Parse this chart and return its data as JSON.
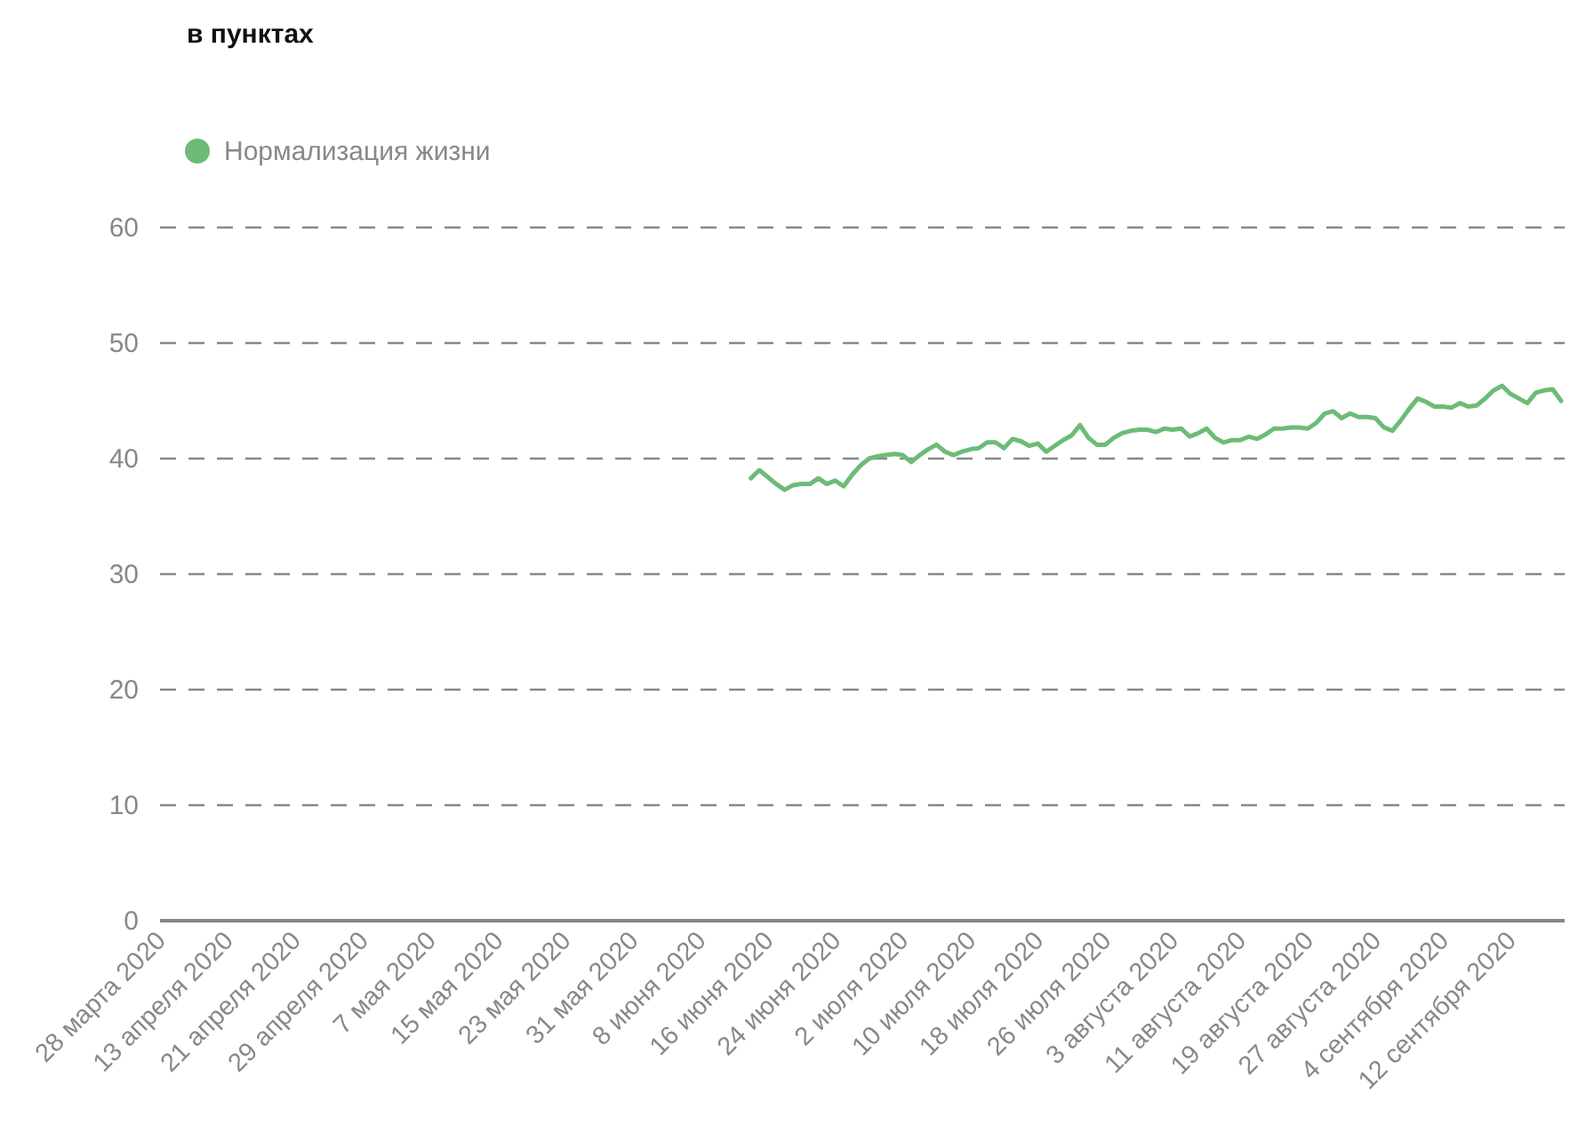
{
  "chart_data": {
    "type": "line",
    "title": "в пунктах",
    "legend": "top left",
    "grid": "y",
    "line_style": "solid",
    "marker": "none",
    "categories": [
      "28 марта 2020",
      null,
      null,
      null,
      null,
      null,
      null,
      null,
      "13 апреля 2020",
      null,
      null,
      null,
      null,
      null,
      null,
      null,
      "21 апреля 2020",
      null,
      null,
      null,
      null,
      null,
      null,
      null,
      "29 апреля 2020",
      null,
      null,
      null,
      null,
      null,
      null,
      null,
      "7 мая 2020",
      null,
      null,
      null,
      null,
      null,
      null,
      null,
      "15 мая 2020",
      null,
      null,
      null,
      null,
      null,
      null,
      null,
      "23 мая 2020",
      null,
      null,
      null,
      null,
      null,
      null,
      null,
      "31 мая 2020",
      null,
      null,
      null,
      null,
      null,
      null,
      null,
      "8 июня 2020",
      null,
      null,
      null,
      null,
      null,
      null,
      null,
      "16 июня 2020",
      null,
      null,
      null,
      null,
      null,
      null,
      null,
      "24 июня 2020",
      null,
      null,
      null,
      null,
      null,
      null,
      null,
      "2 июля 2020",
      null,
      null,
      null,
      null,
      null,
      null,
      null,
      "10 июля 2020",
      null,
      null,
      null,
      null,
      null,
      null,
      null,
      "18 июля 2020",
      null,
      null,
      null,
      null,
      null,
      null,
      null,
      "26 июля 2020",
      null,
      null,
      null,
      null,
      null,
      null,
      null,
      "3 августа 2020",
      null,
      null,
      null,
      null,
      null,
      null,
      null,
      "11 августа 2020",
      null,
      null,
      null,
      null,
      null,
      null,
      null,
      "19 августа 2020",
      null,
      null,
      null,
      null,
      null,
      null,
      null,
      "27 августа 2020",
      null,
      null,
      null,
      null,
      null,
      null,
      null,
      "4 сентября 2020",
      null,
      null,
      null,
      null,
      null,
      null,
      null,
      "12 сентября 2020",
      null,
      null,
      null,
      null,
      null,
      null
    ],
    "series": [
      {
        "name": "Нормализация жизни",
        "color": "#6dbb77",
        "values": [
          null,
          null,
          null,
          null,
          null,
          null,
          null,
          null,
          null,
          null,
          null,
          null,
          null,
          null,
          null,
          null,
          null,
          null,
          null,
          null,
          null,
          null,
          null,
          null,
          null,
          null,
          null,
          null,
          null,
          null,
          null,
          null,
          null,
          null,
          null,
          null,
          null,
          null,
          null,
          null,
          null,
          null,
          null,
          null,
          null,
          null,
          null,
          null,
          null,
          null,
          null,
          null,
          null,
          null,
          null,
          null,
          null,
          null,
          null,
          null,
          null,
          null,
          null,
          null,
          null,
          null,
          null,
          null,
          null,
          null,
          38.3,
          39.0,
          38.4,
          37.8,
          37.3,
          37.7,
          37.8,
          37.8,
          38.3,
          37.8,
          38.1,
          37.6,
          38.6,
          39.4,
          40.0,
          40.2,
          40.3,
          40.4,
          40.3,
          39.7,
          40.3,
          40.8,
          41.2,
          40.6,
          40.3,
          40.6,
          40.8,
          40.9,
          41.4,
          41.4,
          40.9,
          41.7,
          41.5,
          41.1,
          41.3,
          40.6,
          41.1,
          41.6,
          42.0,
          42.9,
          41.8,
          41.2,
          41.2,
          41.8,
          42.2,
          42.4,
          42.5,
          42.5,
          42.3,
          42.6,
          42.5,
          42.6,
          41.9,
          42.2,
          42.6,
          41.8,
          41.4,
          41.6,
          41.6,
          41.9,
          41.7,
          42.1,
          42.6,
          42.6,
          42.7,
          42.7,
          42.6,
          43.1,
          43.9,
          44.1,
          43.5,
          43.9,
          43.6,
          43.6,
          43.5,
          42.7,
          42.4,
          43.3,
          44.3,
          45.2,
          44.9,
          44.5,
          44.5,
          44.4,
          44.8,
          44.5,
          44.6,
          45.2,
          45.9,
          46.3,
          45.6,
          45.2,
          44.8,
          45.7,
          45.9,
          46.0,
          45.0
        ]
      }
    ],
    "ylim": [
      0,
      60
    ],
    "yticks": [
      0,
      10,
      20,
      30,
      40,
      50,
      60
    ]
  }
}
